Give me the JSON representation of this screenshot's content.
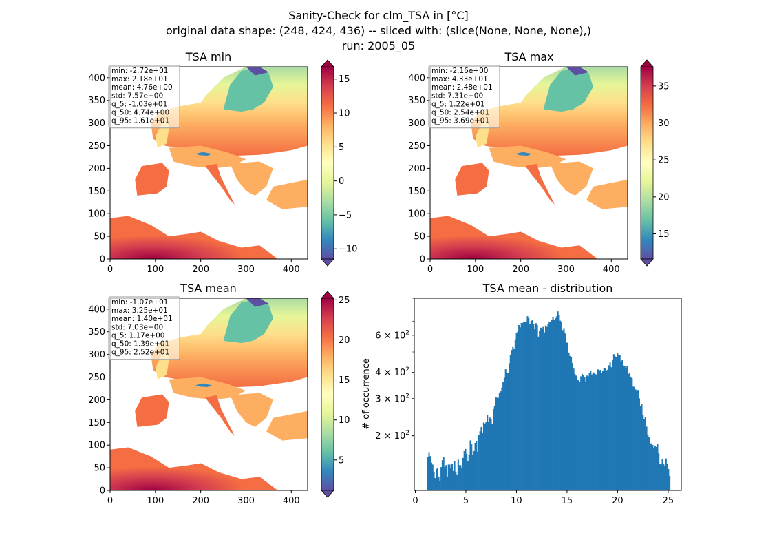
{
  "figure": {
    "title_lines": [
      "Sanity-Check for clm_TSA in [°C]",
      "original data shape: (248, 424, 436) -- sliced with: (slice(None, None, None),)",
      "run: 2005_05"
    ]
  },
  "colors": {
    "spectral_r": [
      "#5e4fa2",
      "#3288bd",
      "#66c2a5",
      "#abdda4",
      "#e6f598",
      "#ffffbf",
      "#fee08b",
      "#fdae61",
      "#f46d43",
      "#d53e4f",
      "#9e0142"
    ],
    "hist_bar": "#1f77b4",
    "map_nodata": "#ffffff"
  },
  "chart_data": [
    {
      "type": "heatmap",
      "title": "TSA min",
      "x_ticks": [
        0,
        100,
        200,
        300,
        400
      ],
      "y_ticks": [
        0,
        50,
        100,
        150,
        200,
        250,
        300,
        350,
        400
      ],
      "xlim": [
        0,
        436
      ],
      "ylim": [
        0,
        424
      ],
      "colorbar": {
        "range": [
          -11.5,
          16.8
        ],
        "ticks": [
          -10,
          -5,
          0,
          5,
          10,
          15
        ],
        "extend": "both"
      },
      "stats_lines": [
        "min: -2.72e+01",
        "max: 2.18e+01",
        "mean: 4.76e+00",
        "std: 7.57e+00",
        "q_5: -1.03e+01",
        "q_50: 4.74e+00",
        "q_95: 1.61e+01"
      ]
    },
    {
      "type": "heatmap",
      "title": "TSA max",
      "x_ticks": [
        0,
        100,
        200,
        300,
        400
      ],
      "y_ticks": [
        0,
        50,
        100,
        150,
        200,
        250,
        300,
        350,
        400
      ],
      "xlim": [
        0,
        436
      ],
      "ylim": [
        0,
        424
      ],
      "colorbar": {
        "range": [
          11.6,
          37.6
        ],
        "ticks": [
          15,
          20,
          25,
          30,
          35
        ],
        "extend": "both"
      },
      "stats_lines": [
        "min: -2.16e+00",
        "max: 4.33e+01",
        "mean: 2.48e+01",
        "std: 7.31e+00",
        "q_5: 1.22e+01",
        "q_50: 2.54e+01",
        "q_95: 3.69e+01"
      ]
    },
    {
      "type": "heatmap",
      "title": "TSA mean",
      "x_ticks": [
        0,
        100,
        200,
        300,
        400
      ],
      "y_ticks": [
        0,
        50,
        100,
        150,
        200,
        250,
        300,
        350,
        400
      ],
      "xlim": [
        0,
        436
      ],
      "ylim": [
        0,
        424
      ],
      "colorbar": {
        "range": [
          1.2,
          25.2
        ],
        "ticks": [
          5,
          10,
          15,
          20,
          25
        ],
        "extend": "both"
      },
      "stats_lines": [
        "min: -1.07e+01",
        "max: 3.25e+01",
        "mean: 1.40e+01",
        "std: 7.03e+00",
        "q_5: 1.17e+00",
        "q_50: 1.39e+01",
        "q_95: 2.52e+01"
      ]
    },
    {
      "type": "bar",
      "title": "TSA mean - distribution",
      "ylabel": "# of occurrence",
      "x_ticks": [
        0,
        5,
        10,
        15,
        20,
        25
      ],
      "xlim": [
        -0.1,
        26.3
      ],
      "y_scale": "log",
      "ylim": [
        110,
        900
      ],
      "y_major_ticks": [
        {
          "base": "2 × 10",
          "exp": "2",
          "value": 200
        },
        {
          "base": "3 × 10",
          "exp": "2",
          "value": 300
        },
        {
          "base": "4 × 10",
          "exp": "2",
          "value": 400
        },
        {
          "base": "6 × 10",
          "exp": "2",
          "value": 600
        }
      ],
      "y_minor_ticks": [
        500,
        700,
        800,
        900
      ],
      "bin_range": [
        1.17,
        25.2
      ],
      "bin_count": 200,
      "values": [
        158,
        167,
        160,
        149,
        146,
        135,
        126,
        139,
        140,
        128,
        122,
        142,
        153,
        158,
        142,
        145,
        128,
        146,
        146,
        140,
        147,
        136,
        151,
        135,
        131,
        154,
        145,
        145,
        140,
        157,
        169,
        173,
        164,
        152,
        162,
        190,
        182,
        162,
        169,
        185,
        189,
        168,
        202,
        210,
        220,
        206,
        231,
        229,
        232,
        250,
        233,
        244,
        239,
        227,
        268,
        278,
        304,
        303,
        303,
        320,
        325,
        339,
        359,
        377,
        414,
        398,
        399,
        442,
        484,
        511,
        528,
        519,
        574,
        614,
        624,
        671,
        654,
        687,
        687,
        697,
        694,
        698,
        739,
        729,
        681,
        702,
        710,
        681,
        641,
        685,
        671,
        591,
        627,
        652,
        647,
        658,
        619,
        668,
        658,
        678,
        697,
        693,
        711,
        735,
        713,
        722,
        738,
        779,
        749,
        704,
        693,
        635,
        649,
        612,
        554,
        553,
        497,
        478,
        471,
        443,
        417,
        393,
        386,
        367,
        367,
        362,
        383,
        393,
        387,
        380,
        362,
        386,
        383,
        398,
        408,
        391,
        400,
        396,
        392,
        391,
        413,
        405,
        411,
        397,
        406,
        418,
        418,
        409,
        412,
        432,
        446,
        423,
        459,
        488,
        477,
        474,
        493,
        486,
        484,
        451,
        458,
        431,
        427,
        417,
        427,
        393,
        398,
        379,
        375,
        342,
        342,
        332,
        327,
        330,
        301,
        277,
        282,
        251,
        239,
        246,
        221,
        202,
        198,
        184,
        184,
        181,
        175,
        178,
        177,
        183,
        165,
        147,
        146,
        155,
        147,
        144,
        156,
        147,
        139,
        129
      ]
    }
  ]
}
